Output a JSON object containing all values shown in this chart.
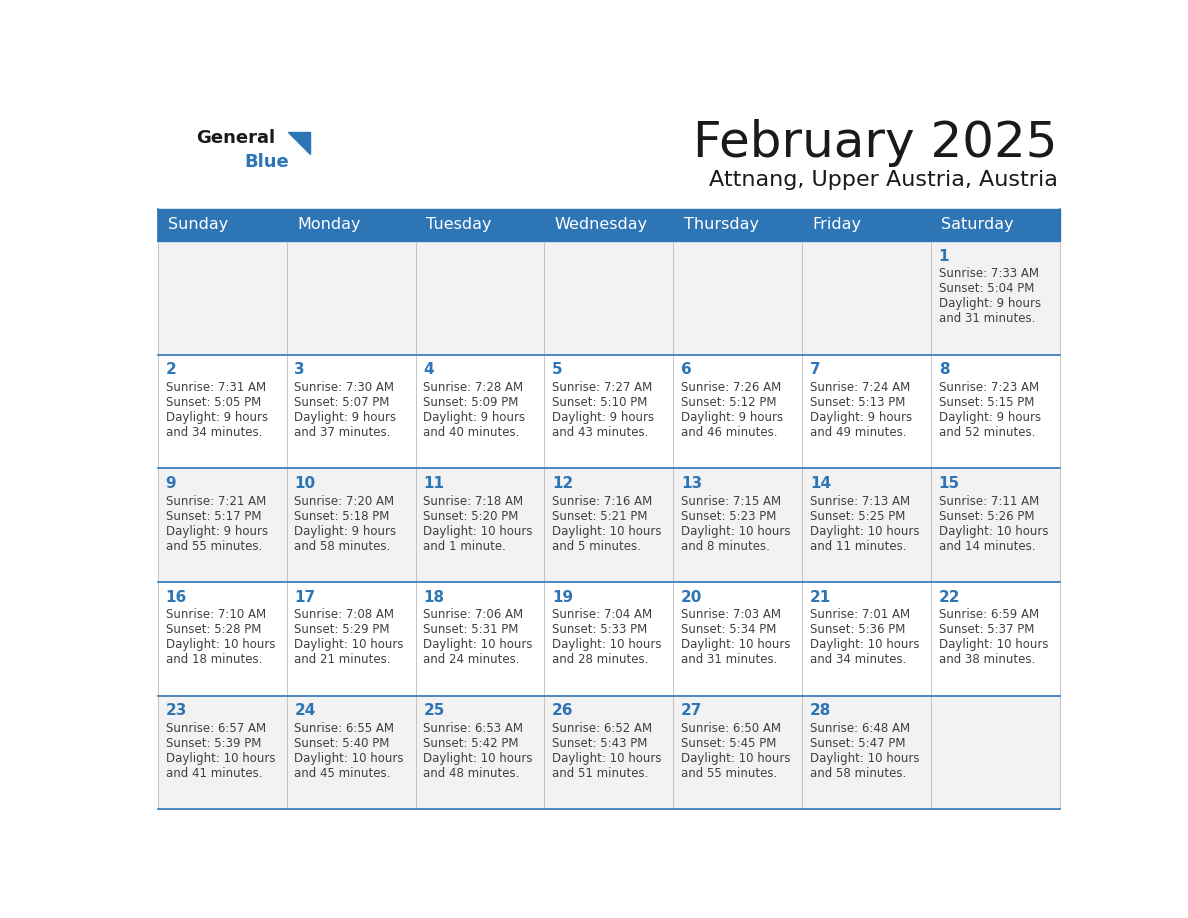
{
  "title": "February 2025",
  "subtitle": "Attnang, Upper Austria, Austria",
  "header_bg": "#2E75B6",
  "header_text_color": "#FFFFFF",
  "cell_bg_light": "#F2F2F2",
  "cell_bg_white": "#FFFFFF",
  "day_number_color": "#2E75B6",
  "text_color": "#404040",
  "border_color": "#2E75B6",
  "days_of_week": [
    "Sunday",
    "Monday",
    "Tuesday",
    "Wednesday",
    "Thursday",
    "Friday",
    "Saturday"
  ],
  "calendar_data": [
    [
      null,
      null,
      null,
      null,
      null,
      null,
      {
        "day": "1",
        "sunrise": "7:33 AM",
        "sunset": "5:04 PM",
        "daylight1": "9 hours",
        "daylight2": "and 31 minutes."
      }
    ],
    [
      {
        "day": "2",
        "sunrise": "7:31 AM",
        "sunset": "5:05 PM",
        "daylight1": "9 hours",
        "daylight2": "and 34 minutes."
      },
      {
        "day": "3",
        "sunrise": "7:30 AM",
        "sunset": "5:07 PM",
        "daylight1": "9 hours",
        "daylight2": "and 37 minutes."
      },
      {
        "day": "4",
        "sunrise": "7:28 AM",
        "sunset": "5:09 PM",
        "daylight1": "9 hours",
        "daylight2": "and 40 minutes."
      },
      {
        "day": "5",
        "sunrise": "7:27 AM",
        "sunset": "5:10 PM",
        "daylight1": "9 hours",
        "daylight2": "and 43 minutes."
      },
      {
        "day": "6",
        "sunrise": "7:26 AM",
        "sunset": "5:12 PM",
        "daylight1": "9 hours",
        "daylight2": "and 46 minutes."
      },
      {
        "day": "7",
        "sunrise": "7:24 AM",
        "sunset": "5:13 PM",
        "daylight1": "9 hours",
        "daylight2": "and 49 minutes."
      },
      {
        "day": "8",
        "sunrise": "7:23 AM",
        "sunset": "5:15 PM",
        "daylight1": "9 hours",
        "daylight2": "and 52 minutes."
      }
    ],
    [
      {
        "day": "9",
        "sunrise": "7:21 AM",
        "sunset": "5:17 PM",
        "daylight1": "9 hours",
        "daylight2": "and 55 minutes."
      },
      {
        "day": "10",
        "sunrise": "7:20 AM",
        "sunset": "5:18 PM",
        "daylight1": "9 hours",
        "daylight2": "and 58 minutes."
      },
      {
        "day": "11",
        "sunrise": "7:18 AM",
        "sunset": "5:20 PM",
        "daylight1": "10 hours",
        "daylight2": "and 1 minute."
      },
      {
        "day": "12",
        "sunrise": "7:16 AM",
        "sunset": "5:21 PM",
        "daylight1": "10 hours",
        "daylight2": "and 5 minutes."
      },
      {
        "day": "13",
        "sunrise": "7:15 AM",
        "sunset": "5:23 PM",
        "daylight1": "10 hours",
        "daylight2": "and 8 minutes."
      },
      {
        "day": "14",
        "sunrise": "7:13 AM",
        "sunset": "5:25 PM",
        "daylight1": "10 hours",
        "daylight2": "and 11 minutes."
      },
      {
        "day": "15",
        "sunrise": "7:11 AM",
        "sunset": "5:26 PM",
        "daylight1": "10 hours",
        "daylight2": "and 14 minutes."
      }
    ],
    [
      {
        "day": "16",
        "sunrise": "7:10 AM",
        "sunset": "5:28 PM",
        "daylight1": "10 hours",
        "daylight2": "and 18 minutes."
      },
      {
        "day": "17",
        "sunrise": "7:08 AM",
        "sunset": "5:29 PM",
        "daylight1": "10 hours",
        "daylight2": "and 21 minutes."
      },
      {
        "day": "18",
        "sunrise": "7:06 AM",
        "sunset": "5:31 PM",
        "daylight1": "10 hours",
        "daylight2": "and 24 minutes."
      },
      {
        "day": "19",
        "sunrise": "7:04 AM",
        "sunset": "5:33 PM",
        "daylight1": "10 hours",
        "daylight2": "and 28 minutes."
      },
      {
        "day": "20",
        "sunrise": "7:03 AM",
        "sunset": "5:34 PM",
        "daylight1": "10 hours",
        "daylight2": "and 31 minutes."
      },
      {
        "day": "21",
        "sunrise": "7:01 AM",
        "sunset": "5:36 PM",
        "daylight1": "10 hours",
        "daylight2": "and 34 minutes."
      },
      {
        "day": "22",
        "sunrise": "6:59 AM",
        "sunset": "5:37 PM",
        "daylight1": "10 hours",
        "daylight2": "and 38 minutes."
      }
    ],
    [
      {
        "day": "23",
        "sunrise": "6:57 AM",
        "sunset": "5:39 PM",
        "daylight1": "10 hours",
        "daylight2": "and 41 minutes."
      },
      {
        "day": "24",
        "sunrise": "6:55 AM",
        "sunset": "5:40 PM",
        "daylight1": "10 hours",
        "daylight2": "and 45 minutes."
      },
      {
        "day": "25",
        "sunrise": "6:53 AM",
        "sunset": "5:42 PM",
        "daylight1": "10 hours",
        "daylight2": "and 48 minutes."
      },
      {
        "day": "26",
        "sunrise": "6:52 AM",
        "sunset": "5:43 PM",
        "daylight1": "10 hours",
        "daylight2": "and 51 minutes."
      },
      {
        "day": "27",
        "sunrise": "6:50 AM",
        "sunset": "5:45 PM",
        "daylight1": "10 hours",
        "daylight2": "and 55 minutes."
      },
      {
        "day": "28",
        "sunrise": "6:48 AM",
        "sunset": "5:47 PM",
        "daylight1": "10 hours",
        "daylight2": "and 58 minutes."
      },
      null
    ]
  ]
}
